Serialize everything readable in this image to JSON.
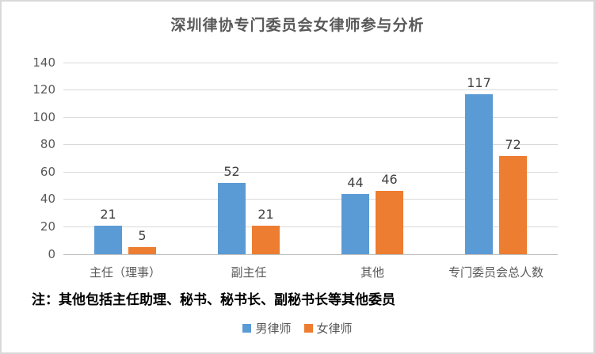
{
  "chart_data": {
    "type": "bar",
    "title": "深圳律协专门委员会女律师参与分析",
    "categories": [
      "主任（理事）",
      "副主任",
      "其他",
      "专门委员会总人数"
    ],
    "series": [
      {
        "key": "male-lawyers",
        "name": "男律师",
        "color": "#5b9bd5",
        "values": [
          21,
          52,
          44,
          117
        ]
      },
      {
        "key": "female-lawyers",
        "name": "女律师",
        "color": "#ed7d31",
        "values": [
          5,
          21,
          46,
          72
        ]
      }
    ],
    "xlabel": "",
    "ylabel": "",
    "ylim": [
      0,
      140
    ],
    "yticks": [
      0,
      20,
      40,
      60,
      80,
      100,
      120,
      140
    ],
    "grid": true,
    "legend_position": "bottom",
    "note": "注：其他包括主任助理、秘书、秘书长、副秘书长等其他委员",
    "colors": {
      "title_text": "#595959",
      "axis_text": "#595959",
      "value_label_text": "#404040",
      "note_text": "#000000",
      "gridline": "#d9d9d9",
      "axis_baseline": "#bfbfbf",
      "frame_border": "#d9d9d9",
      "background": "#ffffff"
    }
  }
}
